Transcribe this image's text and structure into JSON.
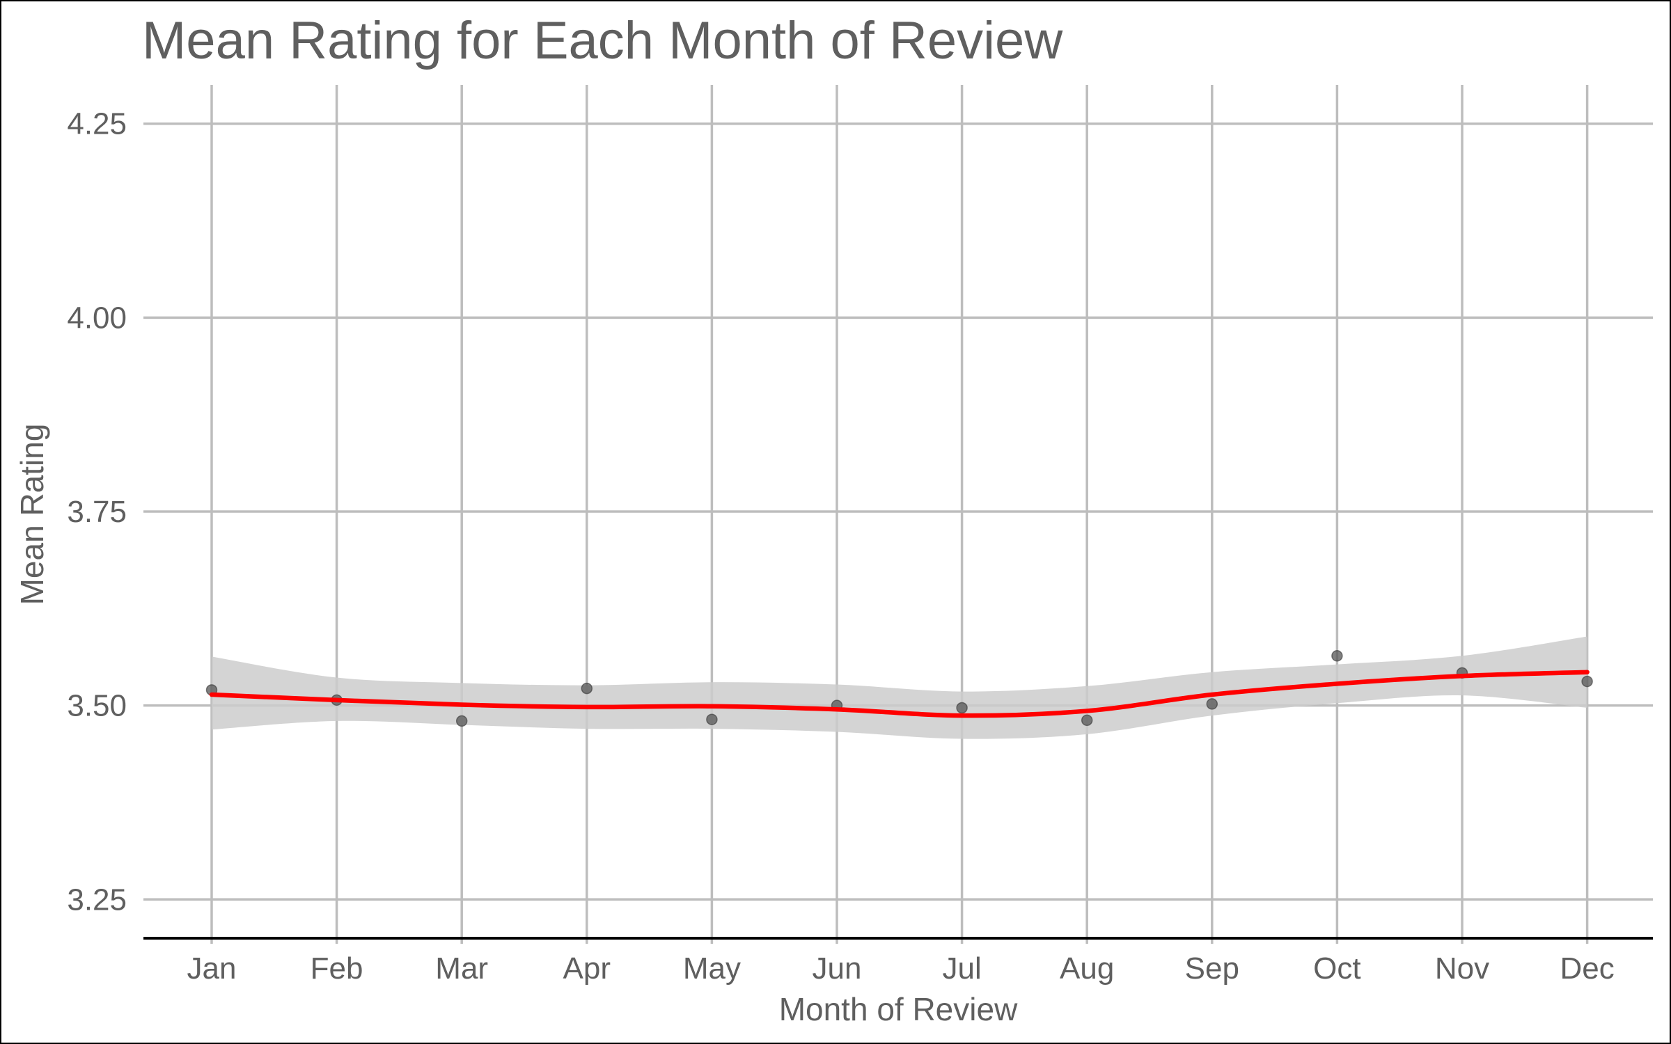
{
  "chart_data": {
    "type": "scatter",
    "title": "Mean Rating for Each Month of Review",
    "xlabel": "Month of Review",
    "ylabel": "Mean Rating",
    "categories": [
      "Jan",
      "Feb",
      "Mar",
      "Apr",
      "May",
      "Jun",
      "Jul",
      "Aug",
      "Sep",
      "Oct",
      "Nov",
      "Dec"
    ],
    "ylim": [
      3.2,
      4.3
    ],
    "yticks": [
      "3.25",
      "3.50",
      "3.75",
      "4.00",
      "4.25"
    ],
    "grid": true,
    "series": [
      {
        "kind": "points",
        "color": "#555555",
        "values": [
          3.52,
          3.507,
          3.48,
          3.522,
          3.482,
          3.5,
          3.497,
          3.481,
          3.502,
          3.564,
          3.542,
          3.531
        ]
      },
      {
        "kind": "smooth-line",
        "color": "#ff0000",
        "values": [
          3.514,
          3.507,
          3.501,
          3.498,
          3.499,
          3.495,
          3.487,
          3.493,
          3.514,
          3.528,
          3.538,
          3.543
        ]
      },
      {
        "kind": "confidence-band",
        "color": "#cccccc",
        "upper": [
          3.563,
          3.536,
          3.529,
          3.526,
          3.53,
          3.527,
          3.518,
          3.525,
          3.543,
          3.553,
          3.564,
          3.589
        ],
        "lower": [
          3.469,
          3.48,
          3.475,
          3.47,
          3.47,
          3.466,
          3.457,
          3.463,
          3.487,
          3.503,
          3.513,
          3.497
        ]
      }
    ]
  }
}
